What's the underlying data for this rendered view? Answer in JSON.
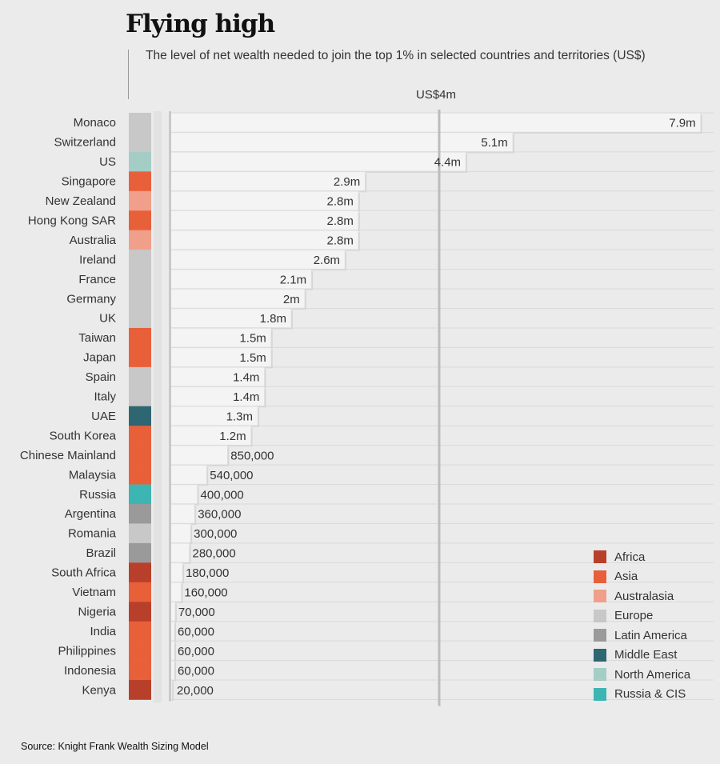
{
  "title": "Flying high",
  "subtitle": "The level of net wealth needed to join the top 1% in selected countries and territories (US$)",
  "reference_line_label": "US$4m",
  "source": "Source: Knight Frank Wealth Sizing Model",
  "region_colors": {
    "Africa": "#b8402a",
    "Asia": "#e8603a",
    "Australasia": "#f0a08a",
    "Europe": "#c8c8c8",
    "Latin America": "#9a9a9a",
    "Middle East": "#2e6672",
    "North America": "#a3cdc5",
    "Russia & CIS": "#3db5b3"
  },
  "legend": [
    {
      "label": "Africa",
      "color": "#b8402a"
    },
    {
      "label": "Asia",
      "color": "#e8603a"
    },
    {
      "label": "Australasia",
      "color": "#f0a08a"
    },
    {
      "label": "Europe",
      "color": "#c8c8c8"
    },
    {
      "label": "Latin America",
      "color": "#9a9a9a"
    },
    {
      "label": "Middle East",
      "color": "#2e6672"
    },
    {
      "label": "North America",
      "color": "#a3cdc5"
    },
    {
      "label": "Russia & CIS",
      "color": "#3db5b3"
    }
  ],
  "chart_data": {
    "type": "bar",
    "orientation": "horizontal",
    "title": "Flying high",
    "subtitle": "The level of net wealth needed to join the top 1% in selected countries and territories (US$)",
    "xlabel": "",
    "ylabel": "",
    "xlim": [
      0,
      8000000
    ],
    "reference_line": {
      "value": 4000000,
      "label": "US$4m"
    },
    "grid": false,
    "legend_position": "bottom-right",
    "categories": [
      "Monaco",
      "Switzerland",
      "US",
      "Singapore",
      "New Zealand",
      "Hong Kong SAR",
      "Australia",
      "Ireland",
      "France",
      "Germany",
      "UK",
      "Taiwan",
      "Japan",
      "Spain",
      "Italy",
      "UAE",
      "South Korea",
      "Chinese Mainland",
      "Malaysia",
      "Russia",
      "Argentina",
      "Romania",
      "Brazil",
      "South Africa",
      "Vietnam",
      "Nigeria",
      "India",
      "Philippines",
      "Indonesia",
      "Kenya"
    ],
    "values": [
      7900000,
      5100000,
      4400000,
      2900000,
      2800000,
      2800000,
      2800000,
      2600000,
      2100000,
      2000000,
      1800000,
      1500000,
      1500000,
      1400000,
      1400000,
      1300000,
      1200000,
      850000,
      540000,
      400000,
      360000,
      300000,
      280000,
      180000,
      160000,
      70000,
      60000,
      60000,
      60000,
      20000
    ],
    "value_labels": [
      "7.9m",
      "5.1m",
      "4.4m",
      "2.9m",
      "2.8m",
      "2.8m",
      "2.8m",
      "2.6m",
      "2.1m",
      "2m",
      "1.8m",
      "1.5m",
      "1.5m",
      "1.4m",
      "1.4m",
      "1.3m",
      "1.2m",
      "850,000",
      "540,000",
      "400,000",
      "360,000",
      "300,000",
      "280,000",
      "180,000",
      "160,000",
      "70,000",
      "60,000",
      "60,000",
      "60,000",
      "20,000"
    ],
    "regions": [
      "Europe",
      "Europe",
      "North America",
      "Asia",
      "Australasia",
      "Asia",
      "Australasia",
      "Europe",
      "Europe",
      "Europe",
      "Europe",
      "Asia",
      "Asia",
      "Europe",
      "Europe",
      "Middle East",
      "Asia",
      "Asia",
      "Asia",
      "Russia & CIS",
      "Latin America",
      "Europe",
      "Latin America",
      "Africa",
      "Asia",
      "Africa",
      "Asia",
      "Asia",
      "Asia",
      "Africa"
    ]
  }
}
